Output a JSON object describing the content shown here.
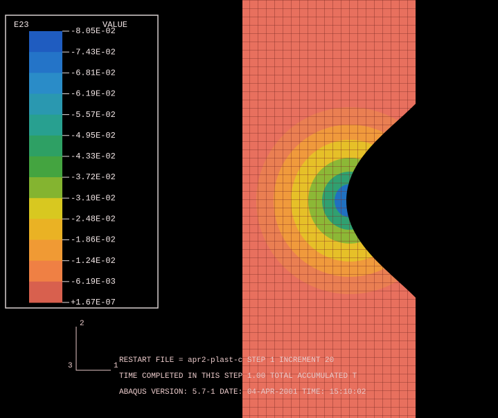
{
  "legend": {
    "title": "E23",
    "header": "VALUE",
    "labels": [
      "-8.05E-02",
      "-7.43E-02",
      "-6.81E-02",
      "-6.19E-02",
      "-5.57E-02",
      "-4.95E-02",
      "-4.33E-02",
      "-3.72E-02",
      "-3.10E-02",
      "-2.48E-02",
      "-1.86E-02",
      "-1.24E-02",
      "-6.19E-03",
      "+1.67E-07"
    ]
  },
  "triad": {
    "axes": [
      "2",
      "3",
      "1"
    ]
  },
  "footer": {
    "lines": [
      "RESTART FILE = apr2-plast-c   STEP 1   INCREMENT 20",
      "TIME COMPLETED IN THIS STEP   1.00   TOTAL ACCUMULATED T",
      "ABAQUS VERSION: 5.7-1   DATE: 04-APR-2001   TIME: 15:10:02"
    ]
  }
}
